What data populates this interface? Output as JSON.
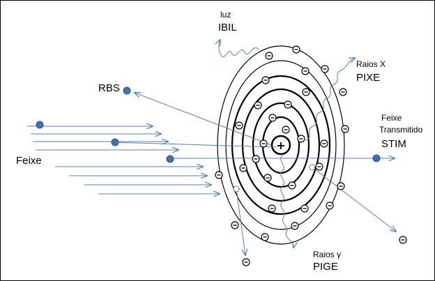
{
  "labels": {
    "luz": "luz",
    "ibil": "IBIL",
    "raios_x": "Raios  X",
    "pixe": "PIXE",
    "rbs": "RBS",
    "feixe_transmitido_1": "Feixe",
    "feixe_transmitido_2": "Transmitido",
    "stim": "STIM",
    "feixe": "Feixe",
    "raios_gama": "Raios γ",
    "pige": "PIGE"
  },
  "symbols": {
    "nucleus": "+",
    "electron": "−"
  },
  "colors": {
    "beam": "#4f81bd",
    "particle": "#3f70c0",
    "orbit": "#000000",
    "text": "#000000"
  }
}
